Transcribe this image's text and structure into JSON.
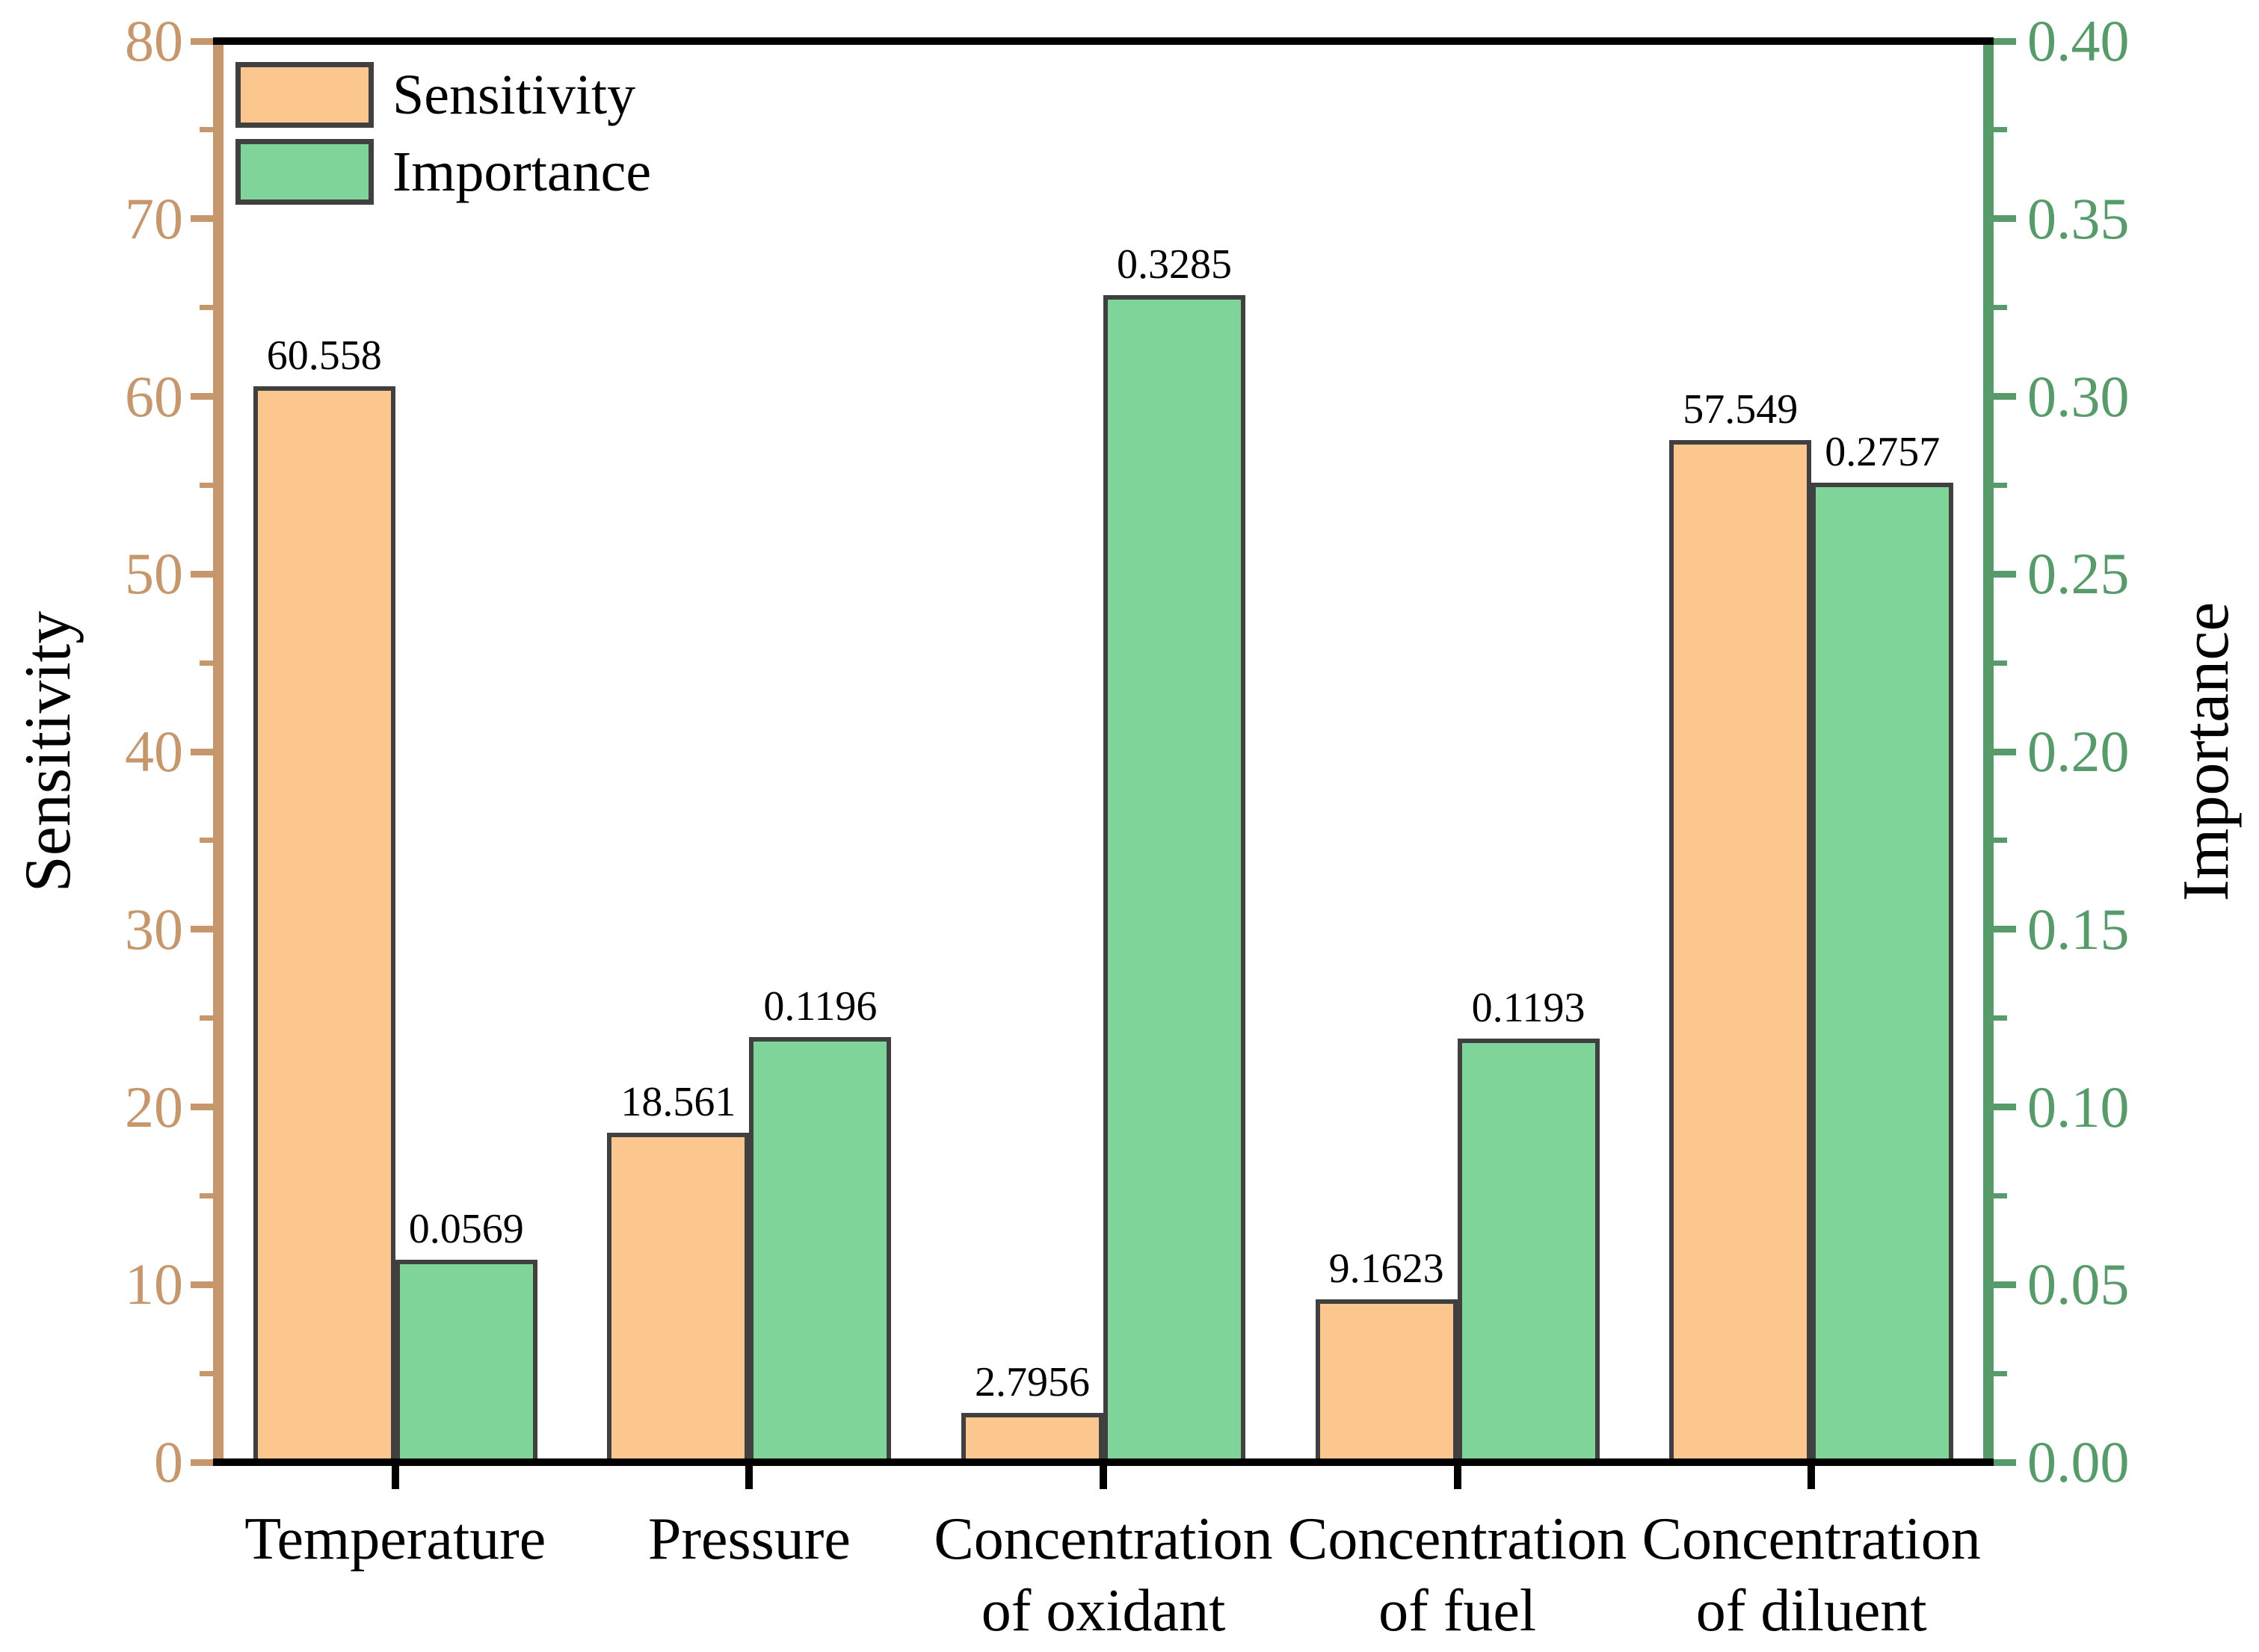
{
  "figure": {
    "background": "#ffffff"
  },
  "legend": {
    "position": "top-left",
    "items": [
      {
        "label": "Sensitivity",
        "swatch_color": "#FBC78F"
      },
      {
        "label": "Importance",
        "swatch_color": "#7FD599"
      }
    ]
  },
  "chart_data": {
    "type": "bar",
    "title": "",
    "categories": [
      "Temperature",
      "Pressure",
      "Concentration\nof oxidant",
      "Concentration\nof fuel",
      "Concentration\nof diluent"
    ],
    "series": [
      {
        "name": "Sensitivity",
        "axis": "left",
        "color": "#FBC78F",
        "values": [
          60.558,
          18.561,
          2.7956,
          9.1623,
          57.549
        ],
        "value_labels": [
          "60.558",
          "18.561",
          "2.7956",
          "9.1623",
          "57.549"
        ]
      },
      {
        "name": "Importance",
        "axis": "right",
        "color": "#7FD599",
        "values": [
          0.0569,
          0.1196,
          0.3285,
          0.1193,
          0.2757
        ],
        "value_labels": [
          "0.0569",
          "0.1196",
          "0.3285",
          "0.1193",
          "0.2757"
        ]
      }
    ],
    "left_axis": {
      "label": "Sensitivity",
      "range": [
        0,
        80
      ],
      "major_tick_step": 10,
      "minor_tick_step": 5,
      "tick_labels": [
        "0",
        "10",
        "20",
        "30",
        "40",
        "50",
        "60",
        "70",
        "80"
      ],
      "color": "#C6976D"
    },
    "right_axis": {
      "label": "Importance",
      "range": [
        0,
        0.4
      ],
      "major_tick_step": 0.05,
      "minor_tick_step": 0.025,
      "tick_labels": [
        "0.00",
        "0.05",
        "0.10",
        "0.15",
        "0.20",
        "0.25",
        "0.30",
        "0.35",
        "0.40"
      ],
      "color": "#579B6B"
    },
    "x_axis": {
      "color": "#000000"
    },
    "bar_border_color": "#404040",
    "grid": false,
    "legend_position": "top-left"
  }
}
